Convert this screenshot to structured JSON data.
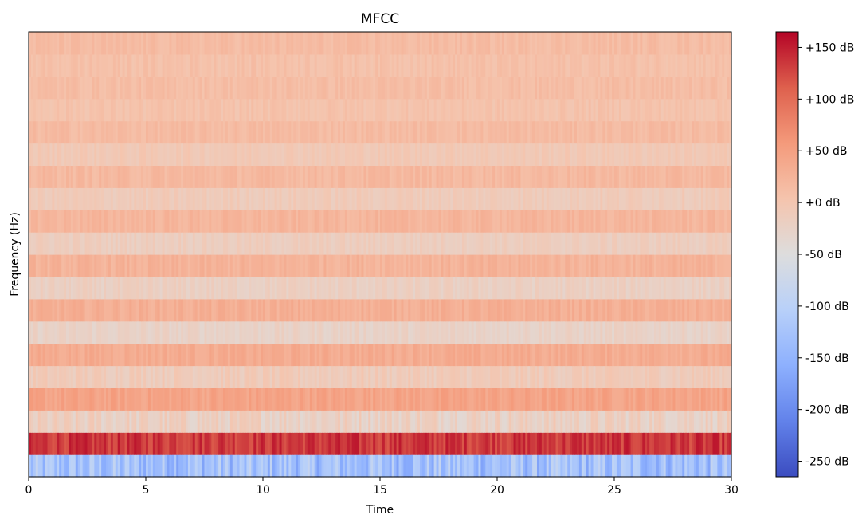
{
  "chart_data": {
    "type": "heatmap",
    "title": "MFCC",
    "xlabel": "Time",
    "ylabel": "Frequency (Hz)",
    "xlim": [
      0,
      30
    ],
    "x_ticks": [
      0,
      5,
      10,
      15,
      20,
      25,
      30
    ],
    "x_tick_labels": [
      "0",
      "5",
      "10",
      "15",
      "20",
      "25",
      "30"
    ],
    "n_coefficients": 20,
    "n_time_frames": 300,
    "colormap": "coolwarm",
    "color_range": [
      -265,
      165
    ],
    "colorbar_ticks": [
      150,
      100,
      50,
      0,
      -50,
      -100,
      -150,
      -200,
      -250
    ],
    "colorbar_tick_labels": [
      "+150 dB",
      "+100 dB",
      "+50 dB",
      "+0 dB",
      "-50 dB",
      "-100 dB",
      "-150 dB",
      "-200 dB",
      "-250 dB"
    ],
    "coefficient_mean_levels": [
      -130,
      135,
      -20,
      45,
      -10,
      35,
      -25,
      30,
      -20,
      25,
      -15,
      22,
      -10,
      18,
      -5,
      15,
      5,
      12,
      8,
      14
    ],
    "coefficient_variation": [
      45,
      20,
      20,
      12,
      12,
      10,
      10,
      10,
      10,
      10,
      9,
      9,
      9,
      9,
      8,
      8,
      8,
      8,
      8,
      8
    ],
    "grid": false,
    "legend": "colorbar-right"
  }
}
